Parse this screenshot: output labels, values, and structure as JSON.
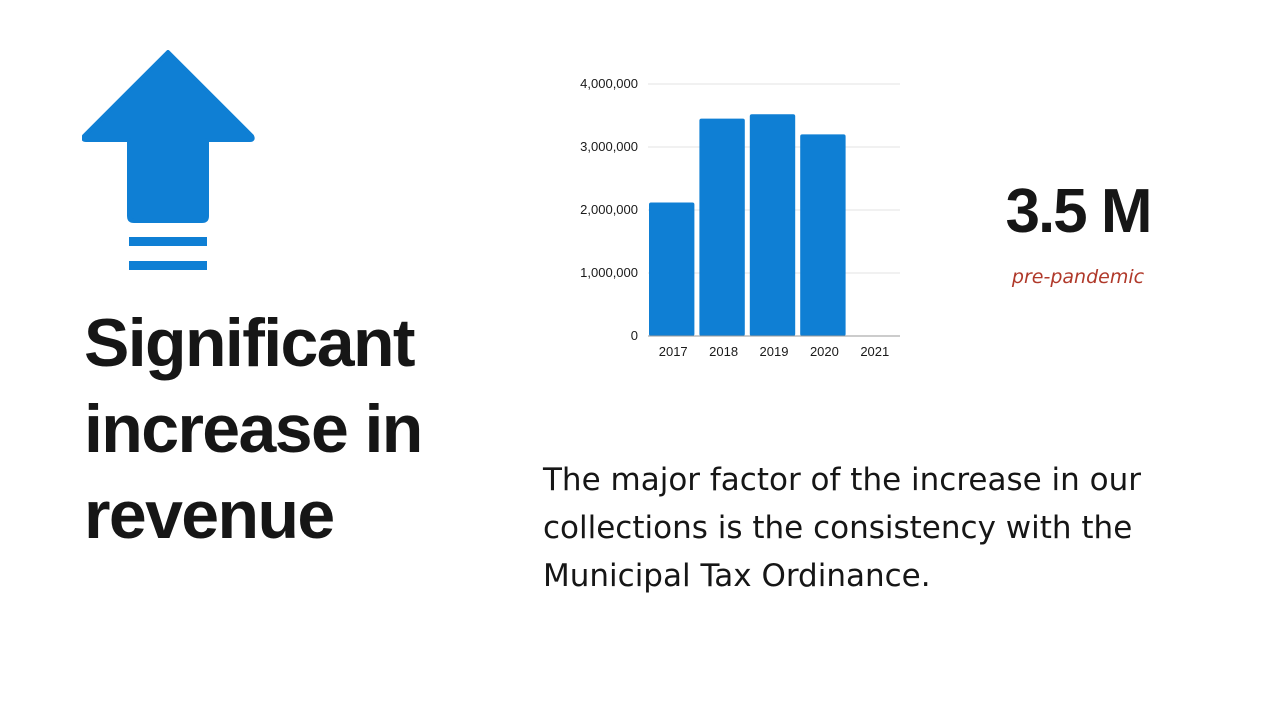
{
  "headline": "Significant increase in revenue",
  "stat": {
    "value": "3.5 M",
    "note": "pre-pandemic"
  },
  "body_text": "The major factor of the increase in our collections is the consistency with the Municipal Tax Ordinance.",
  "icons": {
    "main": "up-arrow-icon"
  },
  "colors": {
    "accent": "#0f7fd4",
    "note": "#b0392a",
    "text": "#161616"
  },
  "chart_data": {
    "type": "bar",
    "categories": [
      "2017",
      "2018",
      "2019",
      "2020",
      "2021"
    ],
    "values": [
      2120000,
      3450000,
      3520000,
      3200000,
      0
    ],
    "ylim": [
      0,
      4000000
    ],
    "yticks": [
      0,
      1000000,
      2000000,
      3000000,
      4000000
    ],
    "ytick_labels": [
      "0",
      "1,000,000",
      "2,000,000",
      "3,000,000",
      "4,000,000"
    ],
    "grid": true,
    "color": "#0f7fd4"
  }
}
